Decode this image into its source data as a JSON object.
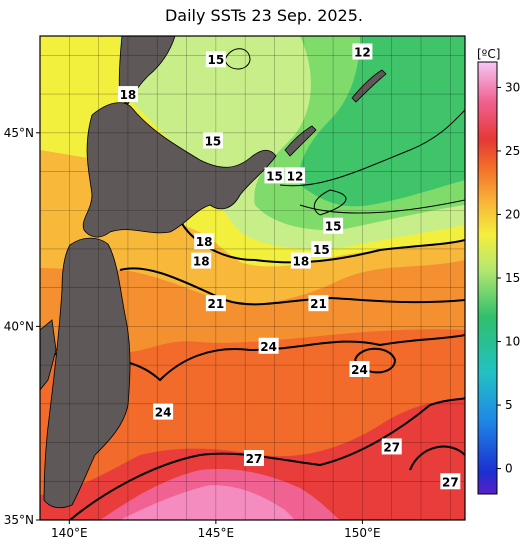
{
  "title": "Daily SSTs 23 Sep. 2025.",
  "map": {
    "lon_range": [
      139,
      153.5
    ],
    "lat_range": [
      35,
      47.5
    ],
    "lon_ticks": [
      {
        "value": 140,
        "label": "140°E"
      },
      {
        "value": 145,
        "label": "145°E"
      },
      {
        "value": 150,
        "label": "150°E"
      }
    ],
    "lat_ticks": [
      {
        "value": 45,
        "label": "45°N"
      },
      {
        "value": 40,
        "label": "40°N"
      },
      {
        "value": 35,
        "label": "35°N"
      }
    ],
    "contour_labels": [
      {
        "text": "15",
        "lon": 145.0,
        "lat": 46.9
      },
      {
        "text": "12",
        "lon": 150.0,
        "lat": 47.1
      },
      {
        "text": "18",
        "lon": 142.0,
        "lat": 46.0
      },
      {
        "text": "15",
        "lon": 144.9,
        "lat": 44.8
      },
      {
        "text": "15",
        "lon": 147.0,
        "lat": 43.9
      },
      {
        "text": "12",
        "lon": 147.7,
        "lat": 43.9
      },
      {
        "text": "15",
        "lon": 149.0,
        "lat": 42.6
      },
      {
        "text": "18",
        "lon": 144.6,
        "lat": 42.2
      },
      {
        "text": "15",
        "lon": 148.6,
        "lat": 42.0
      },
      {
        "text": "18",
        "lon": 144.5,
        "lat": 41.7
      },
      {
        "text": "18",
        "lon": 147.9,
        "lat": 41.7
      },
      {
        "text": "21",
        "lon": 145.0,
        "lat": 40.6
      },
      {
        "text": "21",
        "lon": 148.5,
        "lat": 40.6
      },
      {
        "text": "24",
        "lon": 146.8,
        "lat": 39.5
      },
      {
        "text": "24",
        "lon": 149.9,
        "lat": 38.9
      },
      {
        "text": "24",
        "lon": 143.2,
        "lat": 37.8
      },
      {
        "text": "27",
        "lon": 151.0,
        "lat": 36.9
      },
      {
        "text": "27",
        "lon": 146.3,
        "lat": 36.6
      },
      {
        "text": "27",
        "lon": 153.0,
        "lat": 36.0
      }
    ]
  },
  "colorbar": {
    "unit": "[ºC]",
    "ticks": [
      {
        "value": 30,
        "label": "30"
      },
      {
        "value": 25,
        "label": "25"
      },
      {
        "value": 20,
        "label": "20"
      },
      {
        "value": 15,
        "label": "15"
      },
      {
        "value": 10,
        "label": "10"
      },
      {
        "value": 5,
        "label": "5"
      },
      {
        "value": 0,
        "label": "0"
      }
    ],
    "range": [
      -2,
      32
    ],
    "colors": {
      "c32": "#f7c6f5",
      "c29": "#f06292",
      "c26": "#e53935",
      "c24": "#f26b2a",
      "c21": "#f8b93b",
      "c19": "#f3ef3d",
      "c16": "#b5e86f",
      "c12": "#2fc06a",
      "c8": "#22c1c3",
      "c4": "#1e88e5",
      "c0": "#1b2fd0",
      "c-2": "#5b1fc9"
    }
  },
  "colors": {
    "land": "#5e5858",
    "contour": "#000000"
  }
}
